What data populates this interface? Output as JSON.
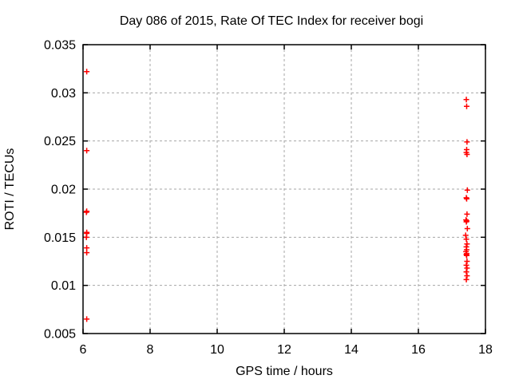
{
  "window": {
    "background": "#ffffff"
  },
  "chart_data": {
    "type": "scatter",
    "title": "Day 086 of 2015, Rate Of TEC Index for receiver bogi",
    "xlabel": "GPS time / hours",
    "ylabel": "ROTI / TECUs",
    "xlim": [
      6,
      18
    ],
    "ylim": [
      0.005,
      0.035
    ],
    "xticks": [
      "6",
      "8",
      "10",
      "12",
      "14",
      "16",
      "18"
    ],
    "yticks": [
      "0.005",
      "0.01",
      "0.015",
      "0.02",
      "0.025",
      "0.03",
      "0.035"
    ],
    "grid": "dashed gray at every tick, both axes",
    "legend_position": "none",
    "marker": "plus",
    "colors": {
      "marker": "#ff0000",
      "grid": "#a6a6a6",
      "border": "#000000",
      "text": "#000000",
      "background": "#ffffff"
    },
    "series": [
      {
        "name": "ROTI",
        "points": [
          [
            6.11,
            0.0322
          ],
          [
            6.11,
            0.024
          ],
          [
            6.11,
            0.0177
          ],
          [
            6.1,
            0.0176
          ],
          [
            6.11,
            0.0155
          ],
          [
            6.11,
            0.0154
          ],
          [
            6.1,
            0.015
          ],
          [
            6.11,
            0.0139
          ],
          [
            6.11,
            0.0134
          ],
          [
            6.11,
            0.0065
          ],
          [
            17.43,
            0.0293
          ],
          [
            17.44,
            0.0286
          ],
          [
            17.45,
            0.0249
          ],
          [
            17.44,
            0.0241
          ],
          [
            17.43,
            0.0238
          ],
          [
            17.45,
            0.0236
          ],
          [
            17.46,
            0.0199
          ],
          [
            17.43,
            0.0191
          ],
          [
            17.44,
            0.019
          ],
          [
            17.45,
            0.0174
          ],
          [
            17.42,
            0.0168
          ],
          [
            17.44,
            0.0167
          ],
          [
            17.43,
            0.0166
          ],
          [
            17.46,
            0.0159
          ],
          [
            17.41,
            0.0152
          ],
          [
            17.43,
            0.0148
          ],
          [
            17.45,
            0.0143
          ],
          [
            17.43,
            0.014
          ],
          [
            17.44,
            0.0137
          ],
          [
            17.42,
            0.0135
          ],
          [
            17.44,
            0.0133
          ],
          [
            17.43,
            0.0132
          ],
          [
            17.44,
            0.0131
          ],
          [
            17.45,
            0.0125
          ],
          [
            17.43,
            0.0121
          ],
          [
            17.45,
            0.0118
          ],
          [
            17.43,
            0.0114
          ],
          [
            17.45,
            0.011
          ],
          [
            17.43,
            0.0106
          ]
        ]
      }
    ]
  }
}
